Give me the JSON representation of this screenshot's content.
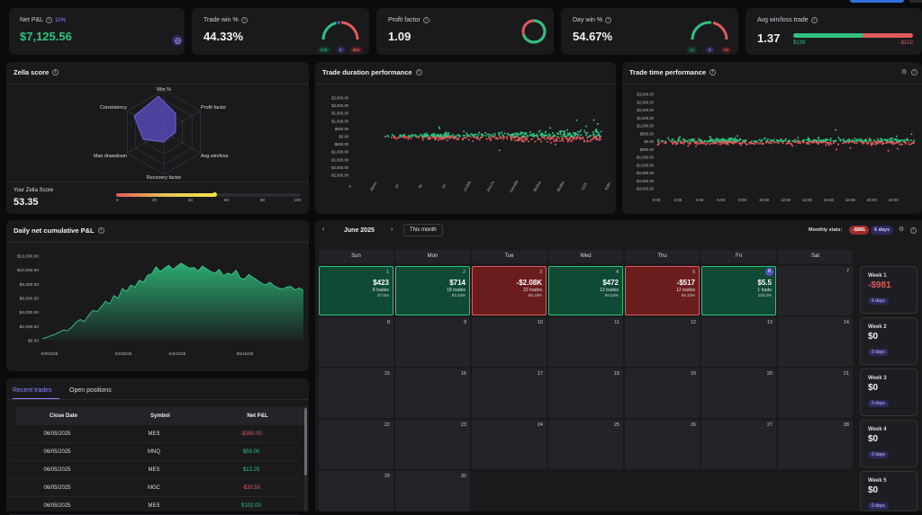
{
  "kpis": {
    "net_pnl": {
      "label": "Net P&L",
      "badge": "10%",
      "value": "$7,125.56",
      "icon": "calculator-icon"
    },
    "trade_win": {
      "label": "Trade win %",
      "value": "44.33%",
      "win": "640",
      "even": "8",
      "loss": "804"
    },
    "profit_factor": {
      "label": "Profit factor",
      "value": "1.09"
    },
    "day_win": {
      "label": "Day win %",
      "value": "54.67%",
      "win": "41",
      "even": "0",
      "loss": "34"
    },
    "avg_win_loss": {
      "label": "Avg win/loss trade",
      "value": "1.37",
      "avg_win": "$139",
      "avg_loss": "-$102"
    }
  },
  "zella": {
    "title": "Zella score",
    "axes": [
      "Win %",
      "Profit factor",
      "Avg win/loss",
      "Recovery factor",
      "Max drawdown",
      "Consistency"
    ],
    "score_label": "Your Zella Score",
    "score": "53.35",
    "score_value": 53.35,
    "scale": [
      "0",
      "20",
      "40",
      "60",
      "80",
      "100"
    ]
  },
  "duration_perf": {
    "title": "Trade duration performance",
    "y_ticks": [
      "$2,500.00",
      "$2,000.00",
      "$1,500.00",
      "$1,000.00",
      "$500.00",
      "$0.00",
      "-$500.00",
      "-$1,000.00",
      "-$1,500.00",
      "-$2,000.00",
      "-$2,500.00"
    ],
    "x_ticks": [
      "0",
      "30min",
      "1h",
      "5h",
      "2d",
      "1m30s",
      "2m17s",
      "24m49s",
      "8h31m",
      "8h28m",
      "1d1h",
      "4d4h"
    ]
  },
  "time_perf": {
    "title": "Trade time performance",
    "y_ticks": [
      "$3,000.00",
      "$2,000.00",
      "$1,000.00",
      "$0.00",
      "-$1,000.00",
      "-$2,000.00",
      "-$3,000.00"
    ],
    "y_ticks_extra": [
      "$2,500.00",
      "$1,500.00",
      "$500.00",
      "-$500.00",
      "-$1,500.00",
      "-$2,500.00"
    ],
    "x_ticks": [
      "0:00",
      "2:00",
      "4:00",
      "6:00",
      "8:00",
      "10:00",
      "12:00",
      "14:00",
      "16:00",
      "18:00",
      "20:00",
      "22:00"
    ]
  },
  "cumulative": {
    "title": "Daily net cumulative P&L",
    "y_ticks": [
      "$12,000.00",
      "$10,000.00",
      "$8,000.00",
      "$6,000.00",
      "$4,000.00",
      "$2,000.00",
      "$0.00"
    ],
    "x_ticks": [
      "03/03/25",
      "03/28/25",
      "04/22/25",
      "05/15/25"
    ],
    "chart_data": {
      "type": "area",
      "ylim": [
        0,
        12000
      ],
      "values": [
        300,
        450,
        700,
        900,
        1200,
        1500,
        1400,
        1900,
        2600,
        3000,
        2700,
        3600,
        4300,
        4100,
        4800,
        5600,
        5200,
        6400,
        6000,
        7400,
        7000,
        7900,
        7600,
        8600,
        8300,
        9300,
        9500,
        10500,
        9800,
        10300,
        10700,
        10100,
        10600,
        11000,
        10600,
        10300,
        10400,
        9900,
        10600,
        10200,
        9800,
        9600,
        10100,
        9200,
        9600,
        9400,
        10000,
        8900,
        8700,
        9400,
        9000,
        8600,
        8200,
        7900,
        8300,
        7800,
        7500,
        7300,
        7600,
        7700,
        7200,
        7500,
        7125
      ]
    }
  },
  "trades_table": {
    "tabs": [
      "Recent trades",
      "Open positions"
    ],
    "headers": [
      "Close Date",
      "Symbol",
      "Net P&L"
    ],
    "rows": [
      {
        "date": "06/05/2025",
        "symbol": "MES",
        "pnl": "-$350.00",
        "neg": true
      },
      {
        "date": "06/05/2025",
        "symbol": "MNQ",
        "pnl": "$59.00",
        "neg": false
      },
      {
        "date": "06/05/2025",
        "symbol": "MES",
        "pnl": "$13.25",
        "neg": false
      },
      {
        "date": "06/05/2025",
        "symbol": "MGC",
        "pnl": "-$30.50",
        "neg": true
      },
      {
        "date": "06/05/2025",
        "symbol": "MES",
        "pnl": "$102.00",
        "neg": false
      }
    ]
  },
  "calendar": {
    "month": "June 2025",
    "this_month": "This month",
    "monthly_stats_label": "Monthly stats:",
    "monthly_pnl": "-$981",
    "monthly_days": "6 days",
    "dow": [
      "Sun",
      "Mon",
      "Tue",
      "Wed",
      "Thu",
      "Fri",
      "Sat"
    ],
    "days": [
      {
        "n": "1",
        "pnl": "$423",
        "trades": "8 trades",
        "wr": "87.5%",
        "state": "win"
      },
      {
        "n": "2",
        "pnl": "$714",
        "trades": "18 trades",
        "wr": "83.33%",
        "state": "win"
      },
      {
        "n": "3",
        "pnl": "-$2.08K",
        "trades": "22 trades",
        "wr": "68.18%",
        "state": "loss"
      },
      {
        "n": "4",
        "pnl": "$472",
        "trades": "13 trades",
        "wr": "69.23%",
        "state": "win"
      },
      {
        "n": "5",
        "pnl": "-$517",
        "trades": "12 trades",
        "wr": "58.33%",
        "state": "loss"
      },
      {
        "n": "6",
        "pnl": "$5.5",
        "trades": "1 trade",
        "wr": "100.0%",
        "state": "win"
      },
      {
        "n": "7"
      },
      {
        "n": "8"
      },
      {
        "n": "9"
      },
      {
        "n": "10"
      },
      {
        "n": "11"
      },
      {
        "n": "12"
      },
      {
        "n": "13"
      },
      {
        "n": "14"
      },
      {
        "n": "15"
      },
      {
        "n": "16"
      },
      {
        "n": "17"
      },
      {
        "n": "18"
      },
      {
        "n": "19"
      },
      {
        "n": "20"
      },
      {
        "n": "21"
      },
      {
        "n": "22"
      },
      {
        "n": "23"
      },
      {
        "n": "24"
      },
      {
        "n": "25"
      },
      {
        "n": "26"
      },
      {
        "n": "27"
      },
      {
        "n": "28"
      },
      {
        "n": "29"
      },
      {
        "n": "30"
      }
    ],
    "weeks": [
      {
        "label": "Week 1",
        "value": "-$981",
        "days": "6 days",
        "neg": true
      },
      {
        "label": "Week 2",
        "value": "$0",
        "days": "0 days",
        "neg": false
      },
      {
        "label": "Week 3",
        "value": "$0",
        "days": "0 days",
        "neg": false
      },
      {
        "label": "Week 4",
        "value": "$0",
        "days": "0 days",
        "neg": false
      },
      {
        "label": "Week 5",
        "value": "$0",
        "days": "0 days",
        "neg": false
      }
    ]
  },
  "colors": {
    "green": "#2ec27e",
    "red": "#e05b5b",
    "purple": "#5b4fc7",
    "win_cell": "#0f4a35",
    "loss_cell": "#6b1d1d"
  }
}
